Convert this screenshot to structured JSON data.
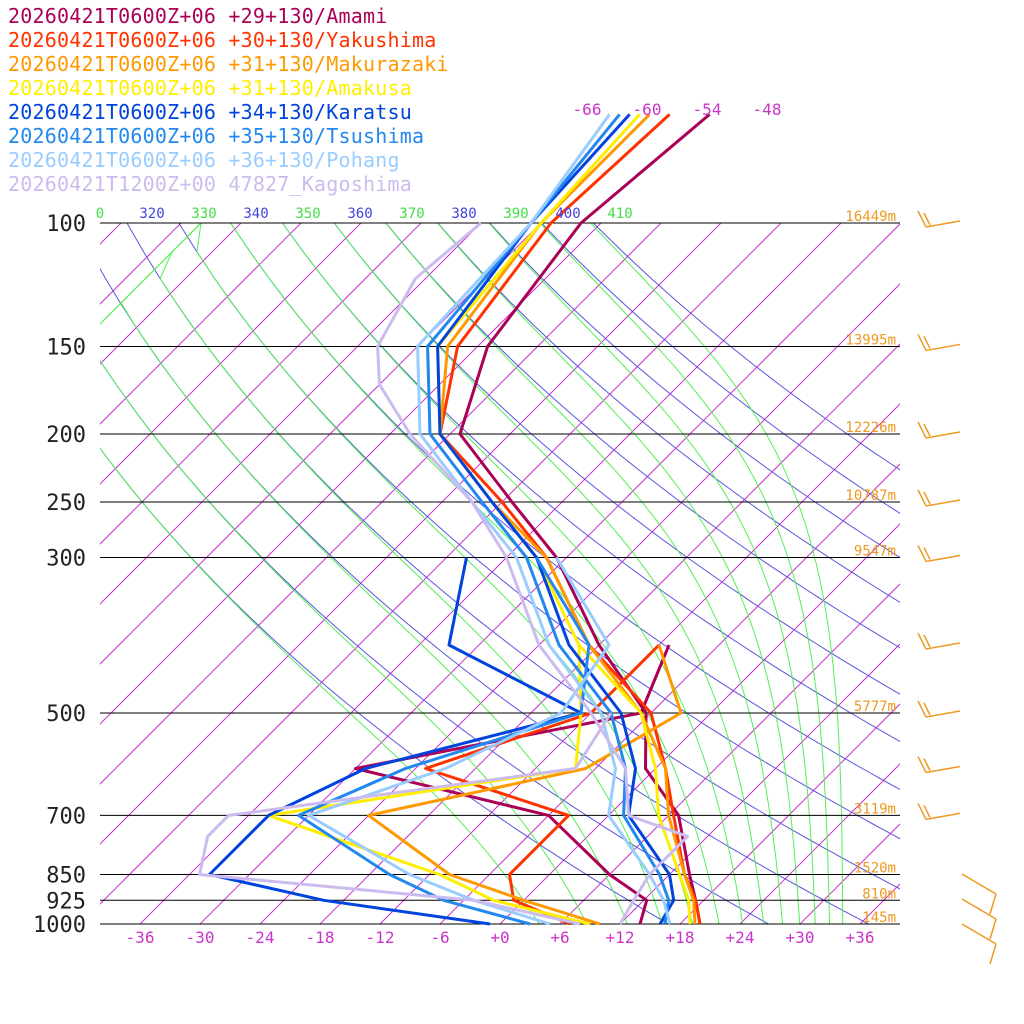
{
  "chart_data": {
    "type": "line",
    "title": "",
    "xlabel": "",
    "ylabel": "",
    "pressure_axis": {
      "scale": "log",
      "range_hpa": [
        1000,
        100
      ],
      "tick_labels": [
        "100",
        "150",
        "200",
        "250",
        "300",
        "500",
        "700",
        "850",
        "925",
        "1000"
      ]
    },
    "temperature_axis": {
      "range_c": [
        -40,
        40
      ],
      "skew": true,
      "tick_labels": [
        "-36",
        "-30",
        "-24",
        "-18",
        "-12",
        "-6",
        "+0",
        "+6",
        "+12",
        "+18",
        "+24",
        "+30",
        "+36"
      ]
    },
    "isotherms_c": [
      -120,
      -114,
      -108,
      -102,
      -96,
      -90,
      -84,
      -78,
      -72,
      -66,
      -60,
      -54,
      -48,
      -42,
      -36,
      -30,
      -24,
      -18,
      -12,
      -6,
      0,
      6,
      12,
      18,
      24,
      30,
      36
    ],
    "isotherm_top_labels": [
      "-66",
      "-60",
      "-54",
      "-48"
    ],
    "dry_adiabats_k": [
      290,
      300,
      310,
      320,
      330,
      340,
      350,
      360,
      370,
      380,
      390,
      400,
      410
    ],
    "moist_adiabats_k": [
      290,
      300,
      310,
      320,
      330,
      340,
      350,
      360,
      370,
      380,
      390,
      400,
      410
    ],
    "theta_labels": [
      {
        "text": "0",
        "color": "#44dd44"
      },
      {
        "text": "320",
        "color": "#4444dd"
      },
      {
        "text": "330",
        "color": "#44dd44"
      },
      {
        "text": "340",
        "color": "#4444dd"
      },
      {
        "text": "350",
        "color": "#44dd44"
      },
      {
        "text": "360",
        "color": "#4444dd"
      },
      {
        "text": "370",
        "color": "#44dd44"
      },
      {
        "text": "380",
        "color": "#4444dd"
      },
      {
        "text": "390",
        "color": "#44dd44"
      },
      {
        "text": "400",
        "color": "#4444dd"
      },
      {
        "text": "410",
        "color": "#44dd44"
      }
    ],
    "heights": [
      {
        "p": 100,
        "text": "16449m"
      },
      {
        "p": 150,
        "text": "13995m"
      },
      {
        "p": 200,
        "text": "12226m"
      },
      {
        "p": 250,
        "text": "10787m"
      },
      {
        "p": 300,
        "text": "9547m"
      },
      {
        "p": 500,
        "text": "5777m"
      },
      {
        "p": 700,
        "text": "3119m"
      },
      {
        "p": 850,
        "text": "1520m"
      },
      {
        "p": 925,
        "text": "810m"
      },
      {
        "p": 1000,
        "text": "145m"
      }
    ],
    "wind_barb_levels_hpa": [
      100,
      150,
      200,
      250,
      300,
      400,
      500,
      600,
      700
    ],
    "series": [
      {
        "name": "20260421T0600Z+06 +29+130/Amami",
        "color": "#aa0055",
        "temperature": [
          [
            1000,
            20
          ],
          [
            925,
            17.2
          ],
          [
            850,
            14
          ],
          [
            700,
            7
          ],
          [
            600,
            -1
          ],
          [
            500,
            -6.5
          ],
          [
            400,
            -18
          ],
          [
            300,
            -31
          ],
          [
            250,
            -41
          ],
          [
            200,
            -53
          ],
          [
            150,
            -59
          ],
          [
            100,
            -62
          ],
          [
            70,
            -60
          ]
        ],
        "dewpoint": [
          [
            1000,
            14
          ],
          [
            925,
            12.3
          ],
          [
            850,
            6
          ],
          [
            700,
            -6
          ],
          [
            600,
            -30
          ],
          [
            500,
            -7
          ],
          [
            400,
            -11
          ]
        ]
      },
      {
        "name": "20260421T0600Z+06 +30+130/Yakushima",
        "color": "#ff3300",
        "temperature": [
          [
            1000,
            20
          ],
          [
            925,
            17.2
          ],
          [
            850,
            13.5
          ],
          [
            700,
            6.5
          ],
          [
            600,
            1
          ],
          [
            500,
            -6
          ],
          [
            400,
            -19
          ],
          [
            300,
            -32
          ],
          [
            250,
            -42
          ],
          [
            200,
            -55
          ],
          [
            150,
            -62
          ],
          [
            100,
            -65
          ],
          [
            70,
            -64
          ]
        ],
        "dewpoint": [
          [
            1000,
            7
          ],
          [
            925,
            -1
          ],
          [
            850,
            -4
          ],
          [
            700,
            -4
          ],
          [
            600,
            -23
          ],
          [
            500,
            -12
          ],
          [
            400,
            -12
          ]
        ]
      },
      {
        "name": "20260421T0600Z+06 +31+130/Makurazaki",
        "color": "#ff9900",
        "temperature": [
          [
            1000,
            19.5
          ],
          [
            925,
            17
          ],
          [
            850,
            13.5
          ],
          [
            700,
            6
          ],
          [
            600,
            1
          ],
          [
            500,
            -7
          ],
          [
            400,
            -19
          ],
          [
            300,
            -32
          ],
          [
            250,
            -43
          ],
          [
            200,
            -55
          ],
          [
            150,
            -63
          ],
          [
            100,
            -66
          ],
          [
            70,
            -66
          ]
        ],
        "dewpoint": [
          [
            1000,
            10
          ],
          [
            925,
            0
          ],
          [
            850,
            -10
          ],
          [
            700,
            -24
          ],
          [
            600,
            -7
          ],
          [
            500,
            -3
          ],
          [
            400,
            -12
          ]
        ]
      },
      {
        "name": "20260421T0600Z+06 +31+130/Amakusa",
        "color": "#ffee00",
        "temperature": [
          [
            1000,
            19
          ],
          [
            925,
            16.5
          ],
          [
            850,
            13
          ],
          [
            700,
            5
          ],
          [
            600,
            0
          ],
          [
            500,
            -7
          ],
          [
            400,
            -20
          ],
          [
            300,
            -33
          ],
          [
            250,
            -43
          ],
          [
            200,
            -55
          ],
          [
            150,
            -64
          ],
          [
            100,
            -66
          ],
          [
            70,
            -67
          ]
        ],
        "dewpoint": [
          [
            1000,
            9
          ],
          [
            925,
            -3
          ],
          [
            850,
            -11
          ],
          [
            700,
            -34
          ],
          [
            600,
            -8
          ],
          [
            500,
            -13
          ],
          [
            400,
            -20
          ]
        ]
      },
      {
        "name": "20260421T0600Z+06 +34+130/Karatsu",
        "color": "#0044dd",
        "temperature": [
          [
            1000,
            16
          ],
          [
            925,
            15
          ],
          [
            850,
            12
          ],
          [
            700,
            2
          ],
          [
            600,
            -2
          ],
          [
            500,
            -9
          ],
          [
            400,
            -21
          ],
          [
            300,
            -33
          ],
          [
            250,
            -43
          ],
          [
            200,
            -55
          ],
          [
            150,
            -64
          ],
          [
            100,
            -67
          ],
          [
            70,
            -68
          ]
        ],
        "dewpoint": [
          [
            1000,
            -1
          ],
          [
            925,
            -20
          ],
          [
            850,
            -34
          ],
          [
            700,
            -34
          ],
          [
            600,
            -29
          ],
          [
            500,
            -13
          ],
          [
            400,
            -33
          ],
          [
            300,
            -40
          ]
        ]
      },
      {
        "name": "20260421T0600Z+06 +35+130/Tsushima",
        "color": "#2288ee",
        "temperature": [
          [
            1000,
            16.5
          ],
          [
            925,
            14.5
          ],
          [
            850,
            11
          ],
          [
            700,
            1.5
          ],
          [
            600,
            -3
          ],
          [
            500,
            -10
          ],
          [
            400,
            -22
          ],
          [
            300,
            -34
          ],
          [
            250,
            -44
          ],
          [
            200,
            -56
          ],
          [
            150,
            -65
          ],
          [
            100,
            -67
          ],
          [
            70,
            -69
          ]
        ],
        "dewpoint": [
          [
            1000,
            3
          ],
          [
            925,
            -8
          ],
          [
            850,
            -16
          ],
          [
            700,
            -31
          ],
          [
            600,
            -25
          ],
          [
            500,
            -13
          ],
          [
            400,
            -19
          ],
          [
            300,
            -33
          ]
        ]
      },
      {
        "name": "20260421T0600Z+06 +36+130/Pohang",
        "color": "#99ccff",
        "temperature": [
          [
            1000,
            17
          ],
          [
            925,
            14
          ],
          [
            850,
            10
          ],
          [
            700,
            0
          ],
          [
            600,
            -4
          ],
          [
            500,
            -11
          ],
          [
            400,
            -23
          ],
          [
            300,
            -35
          ],
          [
            250,
            -45
          ],
          [
            200,
            -57
          ],
          [
            150,
            -66
          ],
          [
            100,
            -67
          ],
          [
            70,
            -70
          ]
        ],
        "dewpoint": [
          [
            1000,
            5
          ],
          [
            925,
            -5
          ],
          [
            850,
            -14
          ],
          [
            700,
            -30
          ],
          [
            600,
            -21
          ],
          [
            500,
            -15
          ],
          [
            400,
            -17
          ],
          [
            300,
            -31
          ]
        ]
      },
      {
        "name": "20260421T1200Z+00 47827_Kagoshima",
        "color": "#ccbbee",
        "temperature": [
          [
            1000,
            12
          ],
          [
            925,
            11
          ],
          [
            850,
            10
          ],
          [
            750,
            10
          ],
          [
            700,
            2
          ],
          [
            600,
            -3
          ],
          [
            500,
            -12
          ],
          [
            400,
            -24
          ],
          [
            300,
            -36
          ],
          [
            250,
            -45
          ],
          [
            200,
            -58
          ],
          [
            170,
            -66
          ],
          [
            150,
            -70
          ],
          [
            120,
            -73
          ],
          [
            100,
            -72
          ]
        ],
        "dewpoint": [
          [
            1000,
            8
          ],
          [
            925,
            -5
          ],
          [
            850,
            -35
          ],
          [
            750,
            -38
          ],
          [
            700,
            -38
          ],
          [
            600,
            -8
          ],
          [
            500,
            -10
          ]
        ]
      }
    ]
  }
}
